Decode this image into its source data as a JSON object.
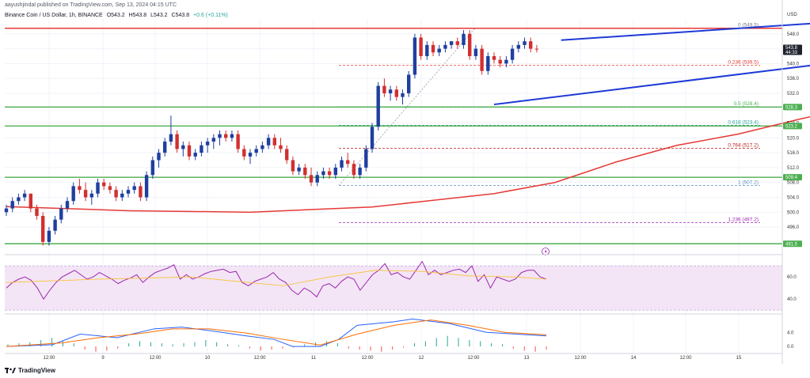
{
  "header": {
    "text": "aayushjindal published on TradingView.com, Sep 13, 2024 04:15 UTC"
  },
  "symbol": {
    "name": "Binance Coin / US Dollar, 1h, BINANCE",
    "open": "O543.2",
    "high": "H543.8",
    "low": "L543.2",
    "close": "C543.8",
    "change": "+0.6 (+0.11%)"
  },
  "brand": {
    "name": "TradingView"
  },
  "colors": {
    "up": "#26a69a",
    "down": "#ef5350",
    "candle_up": "#1f3f9e",
    "candle_down": "#d32f2f",
    "ma": "#e53935",
    "channel": "#1e3ad6",
    "support": "#4caf50",
    "resistance": "#e53935",
    "rsi": "#9c27b0",
    "macd": "#2962ff",
    "signal": "#ff6d00"
  },
  "chart_data": {
    "type": "candlestick",
    "currency": "USD",
    "x_ticks": [
      "12:00",
      "9",
      "12:00",
      "10",
      "12:00",
      "11",
      "12:00",
      "12",
      "12:00",
      "13",
      "12:00",
      "14",
      "12:00",
      "15"
    ],
    "y_ticks": [
      548.0,
      544.0,
      540.0,
      536.0,
      532.0,
      528.0,
      524.0,
      520.0,
      516.0,
      512.0,
      508.0,
      504.0,
      500.0,
      496.0
    ],
    "ylim": [
      489,
      552
    ],
    "price_badge": {
      "value": "543.8",
      "sub": "44:33"
    },
    "horizontal_levels": [
      {
        "value": 549.5,
        "color": "#e53935"
      },
      {
        "value": 528.3,
        "color": "#4caf50",
        "label": "528.3"
      },
      {
        "value": 523.2,
        "color": "#4caf50",
        "label": "523.2"
      },
      {
        "value": 509.4,
        "color": "#4caf50",
        "label": "509.4"
      },
      {
        "value": 491.5,
        "color": "#4caf50",
        "label": "491.5"
      }
    ],
    "fibonacci": [
      {
        "label": "0 (549.5)",
        "value": 549.5,
        "color": "#787b86"
      },
      {
        "label": "0.236 (539.5)",
        "value": 539.5,
        "color": "#e53935"
      },
      {
        "label": "0.5 (528.4)",
        "value": 528.4,
        "color": "#4caf50"
      },
      {
        "label": "0.618 (523.4)",
        "value": 523.4,
        "color": "#26a69a"
      },
      {
        "label": "0.764 (517.2)",
        "value": 517.2,
        "color": "#b71c1c"
      },
      {
        "label": "1 (507.2)",
        "value": 507.2,
        "color": "#5c8dc4"
      },
      {
        "label": "1.236 (497.2)",
        "value": 497.2,
        "color": "#9c27b0"
      }
    ],
    "channel": {
      "upper": [
        [
          91,
          546.3
        ],
        [
          136,
          551.2
        ]
      ],
      "lower": [
        [
          80,
          529.0
        ],
        [
          136,
          540.3
        ]
      ]
    },
    "candles": [
      [
        500,
        502,
        499,
        501
      ],
      [
        501,
        504,
        500,
        503
      ],
      [
        503,
        505,
        502,
        504
      ],
      [
        504,
        506,
        503,
        505
      ],
      [
        505,
        505,
        500,
        501
      ],
      [
        501,
        502,
        498,
        499
      ],
      [
        499,
        500,
        491,
        492
      ],
      [
        492,
        496,
        491,
        495
      ],
      [
        495,
        499,
        494,
        498
      ],
      [
        498,
        502,
        497,
        501
      ],
      [
        501,
        504,
        500,
        503
      ],
      [
        503,
        508,
        502,
        507
      ],
      [
        507,
        509,
        505,
        506
      ],
      [
        506,
        508,
        503,
        504
      ],
      [
        504,
        506,
        502,
        505
      ],
      [
        505,
        509,
        504,
        508
      ],
      [
        508,
        509,
        506,
        507
      ],
      [
        507,
        508,
        505,
        506
      ],
      [
        506,
        507,
        503,
        504
      ],
      [
        504,
        506,
        503,
        505
      ],
      [
        505,
        507,
        504,
        506
      ],
      [
        506,
        508,
        505,
        507
      ],
      [
        507,
        508,
        503,
        504
      ],
      [
        504,
        511,
        503,
        510
      ],
      [
        510,
        515,
        509,
        514
      ],
      [
        514,
        517,
        512,
        516
      ],
      [
        516,
        520,
        515,
        519
      ],
      [
        519,
        526,
        518,
        521
      ],
      [
        521,
        522,
        516,
        517
      ],
      [
        517,
        519,
        515,
        518
      ],
      [
        518,
        519,
        514,
        515
      ],
      [
        515,
        517,
        514,
        516
      ],
      [
        516,
        519,
        515,
        518
      ],
      [
        518,
        520,
        516,
        519
      ],
      [
        519,
        521,
        517,
        520
      ],
      [
        520,
        522,
        518,
        521
      ],
      [
        521,
        522,
        519,
        520
      ],
      [
        520,
        522,
        519,
        521
      ],
      [
        521,
        522,
        516,
        517
      ],
      [
        517,
        518,
        514,
        515
      ],
      [
        515,
        517,
        513,
        516
      ],
      [
        516,
        518,
        515,
        517
      ],
      [
        517,
        519,
        516,
        518
      ],
      [
        518,
        521,
        517,
        520
      ],
      [
        520,
        521,
        517,
        518
      ],
      [
        518,
        520,
        516,
        517
      ],
      [
        517,
        518,
        513,
        514
      ],
      [
        514,
        515,
        510,
        511
      ],
      [
        511,
        513,
        510,
        512
      ],
      [
        512,
        513,
        509,
        510
      ],
      [
        510,
        512,
        507,
        508
      ],
      [
        508,
        511,
        507,
        510
      ],
      [
        510,
        512,
        509,
        511
      ],
      [
        511,
        512,
        509,
        510
      ],
      [
        510,
        513,
        509,
        512
      ],
      [
        512,
        515,
        511,
        514
      ],
      [
        514,
        516,
        512,
        513
      ],
      [
        513,
        514,
        509,
        510
      ],
      [
        510,
        513,
        509,
        512
      ],
      [
        512,
        518,
        511,
        517
      ],
      [
        517,
        524,
        516,
        523
      ],
      [
        523,
        535,
        522,
        534
      ],
      [
        534,
        536,
        531,
        532
      ],
      [
        532,
        534,
        530,
        533
      ],
      [
        533,
        534,
        530,
        531
      ],
      [
        531,
        533,
        529,
        532
      ],
      [
        532,
        538,
        531,
        537
      ],
      [
        537,
        548,
        536,
        547
      ],
      [
        547,
        548,
        541,
        542
      ],
      [
        542,
        546,
        541,
        545
      ],
      [
        545,
        546,
        542,
        543
      ],
      [
        543,
        545,
        542,
        544
      ],
      [
        544,
        546,
        543,
        545
      ],
      [
        545,
        546,
        544,
        546
      ],
      [
        546,
        547,
        544,
        545
      ],
      [
        545,
        549,
        544,
        548
      ],
      [
        548,
        549,
        541,
        542
      ],
      [
        542,
        545,
        541,
        544
      ],
      [
        544,
        545,
        537,
        538
      ],
      [
        538,
        543,
        537,
        542
      ],
      [
        542,
        543,
        540,
        541
      ],
      [
        541,
        542,
        539,
        540
      ],
      [
        540,
        542,
        539,
        541
      ],
      [
        541,
        545,
        540,
        544
      ],
      [
        544,
        546,
        543,
        545
      ],
      [
        545,
        547,
        544,
        546
      ],
      [
        546,
        547,
        543,
        544
      ],
      [
        544,
        545,
        543,
        543.8
      ]
    ],
    "ma_100": [
      [
        0,
        501.5
      ],
      [
        20,
        500.4
      ],
      [
        40,
        500.0
      ],
      [
        60,
        501.4
      ],
      [
        80,
        505.0
      ],
      [
        90,
        508.0
      ],
      [
        100,
        513.5
      ],
      [
        110,
        518.0
      ],
      [
        120,
        521.0
      ],
      [
        130,
        525.0
      ],
      [
        136,
        527.2
      ]
    ],
    "rsi": {
      "y_ticks": [
        60.0,
        40.0
      ],
      "ylim": [
        28,
        78
      ],
      "values": [
        50,
        55,
        58,
        60,
        57,
        50,
        40,
        48,
        55,
        60,
        63,
        66,
        62,
        58,
        60,
        64,
        61,
        58,
        54,
        57,
        59,
        62,
        55,
        60,
        64,
        66,
        68,
        71,
        58,
        62,
        58,
        60,
        63,
        65,
        66,
        67,
        64,
        65,
        55,
        52,
        56,
        58,
        60,
        64,
        58,
        55,
        48,
        44,
        50,
        47,
        42,
        52,
        54,
        50,
        56,
        60,
        58,
        48,
        55,
        62,
        66,
        72,
        62,
        64,
        60,
        58,
        66,
        74,
        62,
        66,
        62,
        64,
        66,
        67,
        64,
        70,
        56,
        62,
        50,
        60,
        58,
        56,
        58,
        64,
        66,
        66,
        60,
        58
      ],
      "ma": [
        [
          0,
          55
        ],
        [
          20,
          58
        ],
        [
          40,
          60
        ],
        [
          50,
          56
        ],
        [
          60,
          52
        ],
        [
          70,
          60
        ],
        [
          80,
          66
        ],
        [
          90,
          65
        ],
        [
          100,
          61
        ],
        [
          110,
          60
        ],
        [
          117,
          58
        ]
      ]
    },
    "macd": {
      "y_ticks": [
        4.0,
        0.0
      ],
      "ylim": [
        -2,
        9
      ],
      "line": [
        [
          0,
          0
        ],
        [
          10,
          0.5
        ],
        [
          16,
          3.5
        ],
        [
          24,
          2.5
        ],
        [
          32,
          5
        ],
        [
          38,
          5.5
        ],
        [
          44,
          4.5
        ],
        [
          52,
          3.0
        ],
        [
          58,
          2.0
        ],
        [
          62,
          0
        ],
        [
          68,
          0
        ],
        [
          72,
          2
        ],
        [
          76,
          6
        ],
        [
          84,
          7
        ],
        [
          88,
          7.8
        ],
        [
          96,
          6.5
        ],
        [
          104,
          4.0
        ],
        [
          117,
          3.0
        ]
      ],
      "signal": [
        [
          0,
          0
        ],
        [
          12,
          1
        ],
        [
          20,
          2.5
        ],
        [
          28,
          3.5
        ],
        [
          36,
          5
        ],
        [
          44,
          5
        ],
        [
          52,
          3.8
        ],
        [
          60,
          2.0
        ],
        [
          68,
          0.4
        ],
        [
          76,
          3.5
        ],
        [
          84,
          6
        ],
        [
          92,
          7.5
        ],
        [
          100,
          6
        ],
        [
          108,
          4.0
        ],
        [
          117,
          3.3
        ]
      ],
      "hist": [
        0.2,
        0.3,
        0.4,
        0.6,
        0.8,
        0.5,
        0.3,
        -0.3,
        -0.5,
        -0.4,
        -0.2,
        0.3,
        0.5,
        0.4,
        0.3,
        0.2,
        0.3,
        0.4,
        0.6,
        0.4,
        0.2,
        0.1,
        -0.2,
        -0.4,
        -0.3,
        -0.2,
        -0.1,
        0.2,
        0.4,
        0.5,
        0.3,
        -0.2,
        -0.3,
        -0.4,
        -0.5,
        -0.3,
        -0.1,
        0.3,
        0.5,
        0.8,
        1.0,
        0.8,
        0.6,
        0.5,
        0.3,
        0.2,
        -0.2,
        -0.4,
        -0.5,
        -0.3
      ]
    }
  }
}
